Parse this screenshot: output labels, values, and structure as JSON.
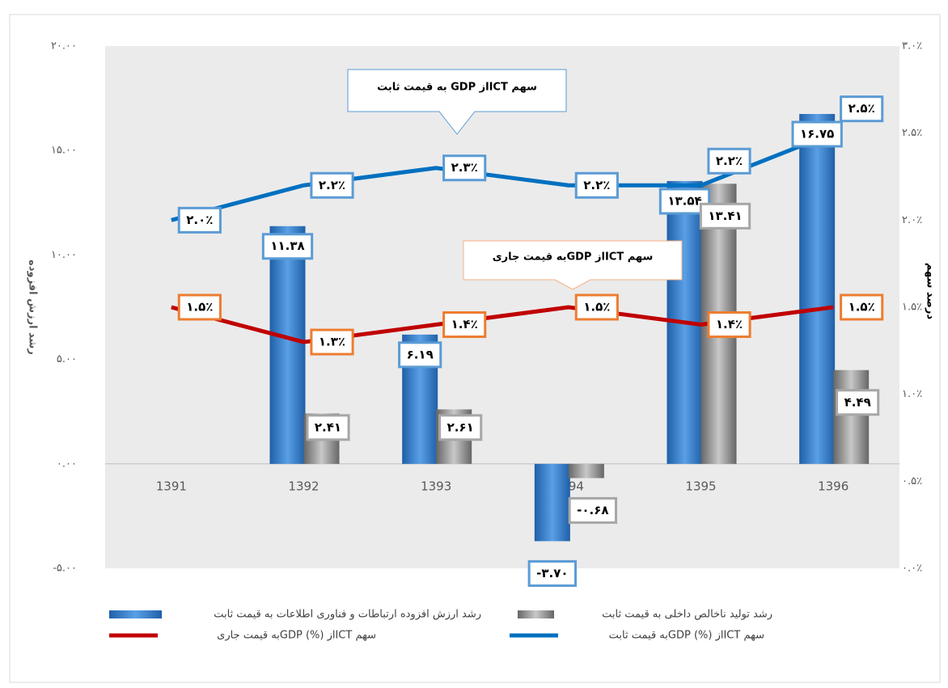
{
  "chart_data": {
    "type": "bar-line",
    "annotations": [
      "سهم ICTاز GDP به قیمت ثابت",
      "سهم ICTاز GDPبه قیمت جاری"
    ],
    "ylabel": "رشد ارزش افزوده",
    "y2label": "درصد سهم",
    "categories": [
      "1391",
      "1392",
      "1393",
      "1394",
      "1395",
      "1396"
    ],
    "ylim": [
      -5,
      20
    ],
    "yticks": [
      {
        "value": -5,
        "label": "-۵.۰۰"
      },
      {
        "value": 0,
        "label": "۰.۰۰"
      },
      {
        "value": 5,
        "label": "۵.۰۰"
      },
      {
        "value": 10,
        "label": "۱۰.۰۰"
      },
      {
        "value": 15,
        "label": "۱۵.۰۰"
      },
      {
        "value": 20,
        "label": "۲۰.۰۰"
      }
    ],
    "y2lim": [
      0,
      3
    ],
    "y2ticks": [
      {
        "value": 0,
        "label": "۰.۰٪"
      },
      {
        "value": 0.5,
        "label": "۰.۵٪"
      },
      {
        "value": 1,
        "label": "۱.۰٪"
      },
      {
        "value": 1.5,
        "label": "۱.۵٪"
      },
      {
        "value": 2,
        "label": "۲.۰٪"
      },
      {
        "value": 2.5,
        "label": "۲.۵٪"
      },
      {
        "value": 3,
        "label": "۳.۰٪"
      }
    ],
    "series": [
      {
        "name": "رشد ارزش افزوده ارتباطات  و فناوری اطلاعات به قیمت ثابت",
        "type": "bar",
        "color": "#2e75c6",
        "values": [
          null,
          11.38,
          6.19,
          -3.7,
          13.54,
          16.75
        ],
        "value_labels": [
          null,
          "۱۱.۳۸",
          "۶.۱۹",
          "-۳.۷۰",
          "۱۳.۵۴",
          "۱۶.۷۵"
        ]
      },
      {
        "name": "رشد تولید ناخالص داخلی به قیمت ثابت",
        "type": "bar",
        "color": "#8c8c8c",
        "values": [
          null,
          2.41,
          2.61,
          -0.68,
          13.41,
          4.49
        ],
        "value_labels": [
          null,
          "۲.۴۱",
          "۲.۶۱",
          "-۰.۶۸",
          "۱۳.۴۱",
          "۴.۴۹"
        ]
      },
      {
        "name": "سهم  ICTاز  (%) GDPبه قیمت جاری",
        "type": "line",
        "axis": "y2",
        "color": "#c00000",
        "values": [
          1.5,
          1.3,
          1.4,
          1.5,
          1.4,
          1.5
        ],
        "value_labels": [
          "۱.۵٪",
          "۱.۳٪",
          "۱.۴٪",
          "۱.۵٪",
          "۱.۴٪",
          "۱.۵٪"
        ]
      },
      {
        "name": "سهم  ICTاز  (%) GDPبه قیمت ثابت",
        "type": "line",
        "axis": "y2",
        "color": "#0070c0",
        "values": [
          2.0,
          2.2,
          2.3,
          2.2,
          2.2,
          2.5
        ],
        "value_labels": [
          "۲.۰٪",
          "۲.۲٪",
          "۲.۳٪",
          "۲.۲٪",
          "۲.۲٪",
          "۲.۵٪"
        ]
      }
    ]
  }
}
